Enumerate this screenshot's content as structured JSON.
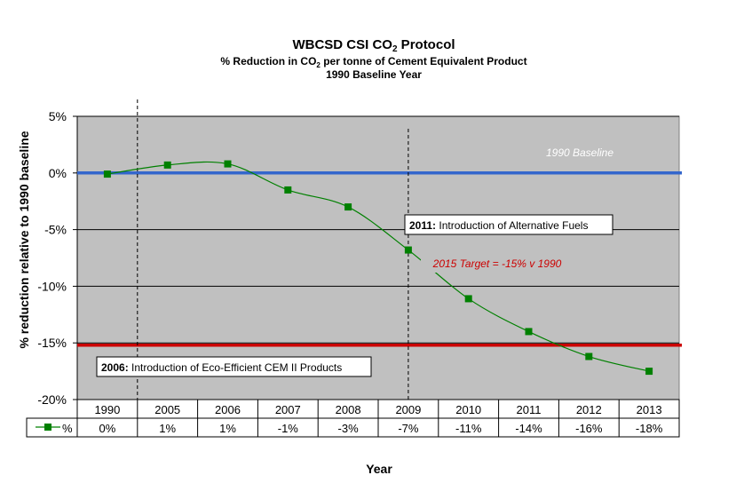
{
  "chart_data": {
    "type": "line",
    "title": "WBCSD CSI CO2 Protocol",
    "title_main": "WBCSD CSI CO",
    "title_sub_glyph": "2",
    "title_suffix": " Protocol",
    "subtitle_line1_prefix": "% Reduction in CO",
    "subtitle_line1_sub": "2",
    "subtitle_line1_suffix": " per tonne of Cement Equivalent Product",
    "subtitle_line2": "1990 Baseline Year",
    "xlabel": "Year",
    "ylabel": "% reduction relative to 1990 baseline",
    "ylim": [
      -20,
      5
    ],
    "yticks": [
      5,
      0,
      -5,
      -10,
      -15,
      -20
    ],
    "ytick_labels": [
      "5%",
      "0%",
      "-5%",
      "-10%",
      "-15%",
      "-20%"
    ],
    "grid": true,
    "categories": [
      "1990",
      "2005",
      "2006",
      "2007",
      "2008",
      "2009",
      "2010",
      "2011",
      "2012",
      "2013"
    ],
    "series": [
      {
        "name": "%",
        "color": "#008000",
        "values": [
          -0.1,
          0.7,
          0.8,
          -1.5,
          -3.0,
          -6.8,
          -11.1,
          -14.0,
          -16.2,
          -17.5
        ],
        "table_labels": [
          "0%",
          "1%",
          "1%",
          "-1%",
          "-3%",
          "-7%",
          "-11%",
          "-14%",
          "-16%",
          "-18%"
        ]
      }
    ],
    "reference_lines": [
      {
        "label": "1990 Baseline",
        "value": 0,
        "color": "#3366cc"
      },
      {
        "label": "2015 Target = -15% v 1990",
        "value": -15.2,
        "color": "#cc0000"
      }
    ],
    "vertical_markers": [
      {
        "after_category": "1990",
        "bold": "2006:",
        "text": "  Introduction of Eco-Efficient CEM II Products"
      },
      {
        "at_category": "2009",
        "bold": "2011:",
        "text": "  Introduction of Alternative Fuels"
      }
    ],
    "plot_background": "#c0c0c0"
  }
}
